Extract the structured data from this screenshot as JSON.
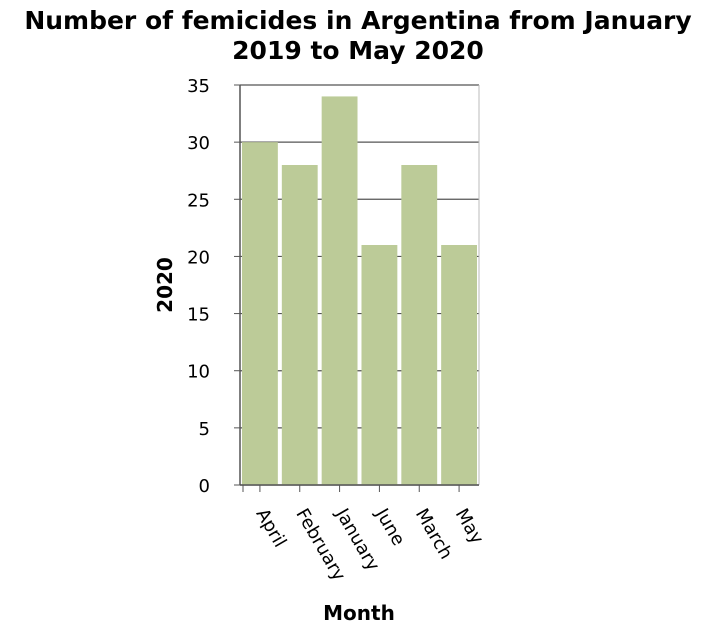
{
  "chart_data": {
    "type": "bar",
    "title_lines": [
      "Number of femicides in Argentina from January",
      "2019 to May 2020"
    ],
    "xlabel": "Month",
    "ylabel": "2020",
    "categories": [
      "April",
      "February",
      "January",
      "June",
      "March",
      "May"
    ],
    "values": [
      30,
      28,
      34,
      21,
      28,
      21
    ],
    "ylim": [
      0,
      35
    ],
    "yticks": [
      0,
      5,
      10,
      15,
      20,
      25,
      30,
      35
    ],
    "grid": true,
    "bar_color": "#bccb98",
    "grid_color": "#555555"
  }
}
